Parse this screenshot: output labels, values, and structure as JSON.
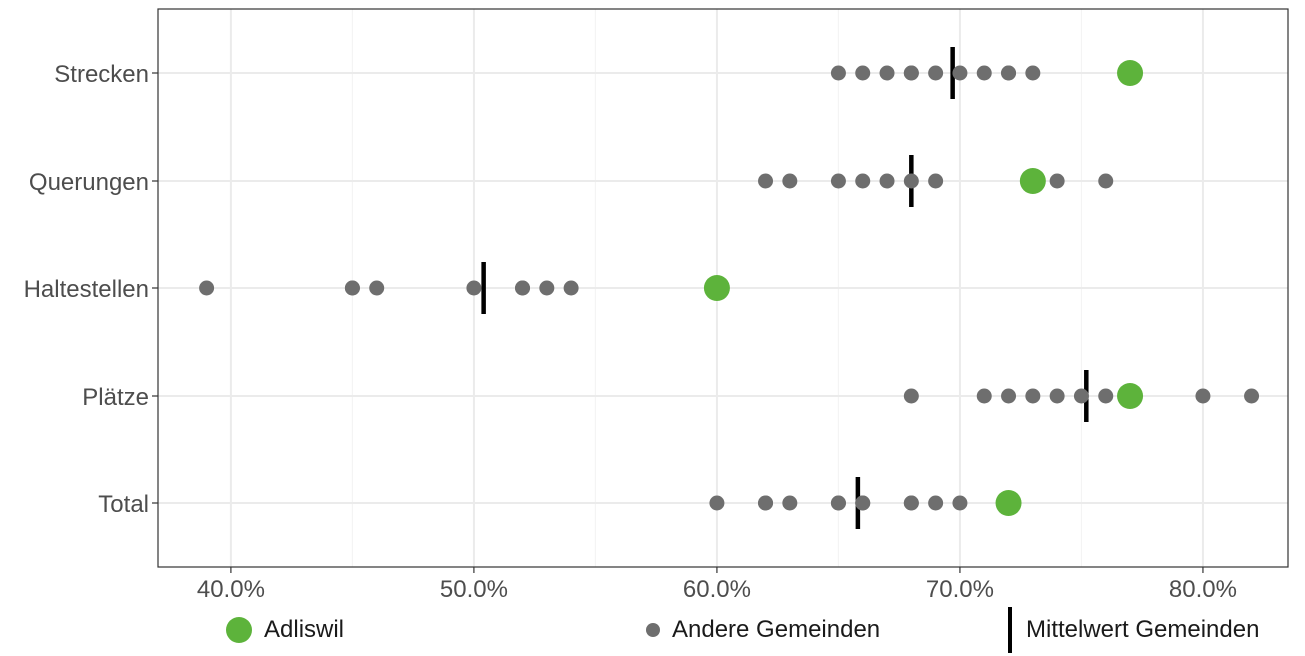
{
  "colors": {
    "highlight": "#5db33b",
    "others": "#6e6e6e",
    "mean": "#000000",
    "grid": "#ebebeb",
    "axis": "#333333"
  },
  "chart_data": {
    "type": "scatter",
    "title": "",
    "xlabel": "",
    "ylabel": "",
    "xlim": [
      0.37,
      0.835
    ],
    "x_ticks": [
      {
        "value": 0.4,
        "label": "40.0%"
      },
      {
        "value": 0.5,
        "label": "50.0%"
      },
      {
        "value": 0.6,
        "label": "60.0%"
      },
      {
        "value": 0.7,
        "label": "70.0%"
      },
      {
        "value": 0.8,
        "label": "80.0%"
      }
    ],
    "grid": true,
    "legend_position": "bottom",
    "categories": [
      "Strecken",
      "Querungen",
      "Haltestellen",
      "Plätze",
      "Total"
    ],
    "series": [
      {
        "name": "Adliswil",
        "symbol": "large-dot",
        "color": "#5db33b",
        "values": [
          0.77,
          0.73,
          0.6,
          0.77,
          0.72
        ]
      },
      {
        "name": "Andere Gemeinden",
        "symbol": "small-dot",
        "color": "#6e6e6e",
        "values": [
          [
            0.65,
            0.66,
            0.67,
            0.68,
            0.68,
            0.69,
            0.7,
            0.71,
            0.72,
            0.72,
            0.73
          ],
          [
            0.62,
            0.63,
            0.65,
            0.66,
            0.67,
            0.68,
            0.69,
            0.74,
            0.76
          ],
          [
            0.39,
            0.45,
            0.45,
            0.46,
            0.5,
            0.52,
            0.52,
            0.53,
            0.54
          ],
          [
            0.68,
            0.71,
            0.72,
            0.73,
            0.74,
            0.75,
            0.76,
            0.8,
            0.82
          ],
          [
            0.6,
            0.62,
            0.62,
            0.63,
            0.65,
            0.65,
            0.66,
            0.66,
            0.68,
            0.68,
            0.69,
            0.7
          ]
        ]
      },
      {
        "name": "Mittelwert Gemeinden",
        "symbol": "vertical-line",
        "color": "#000000",
        "values": [
          0.697,
          0.68,
          0.504,
          0.752,
          0.658
        ]
      }
    ]
  }
}
